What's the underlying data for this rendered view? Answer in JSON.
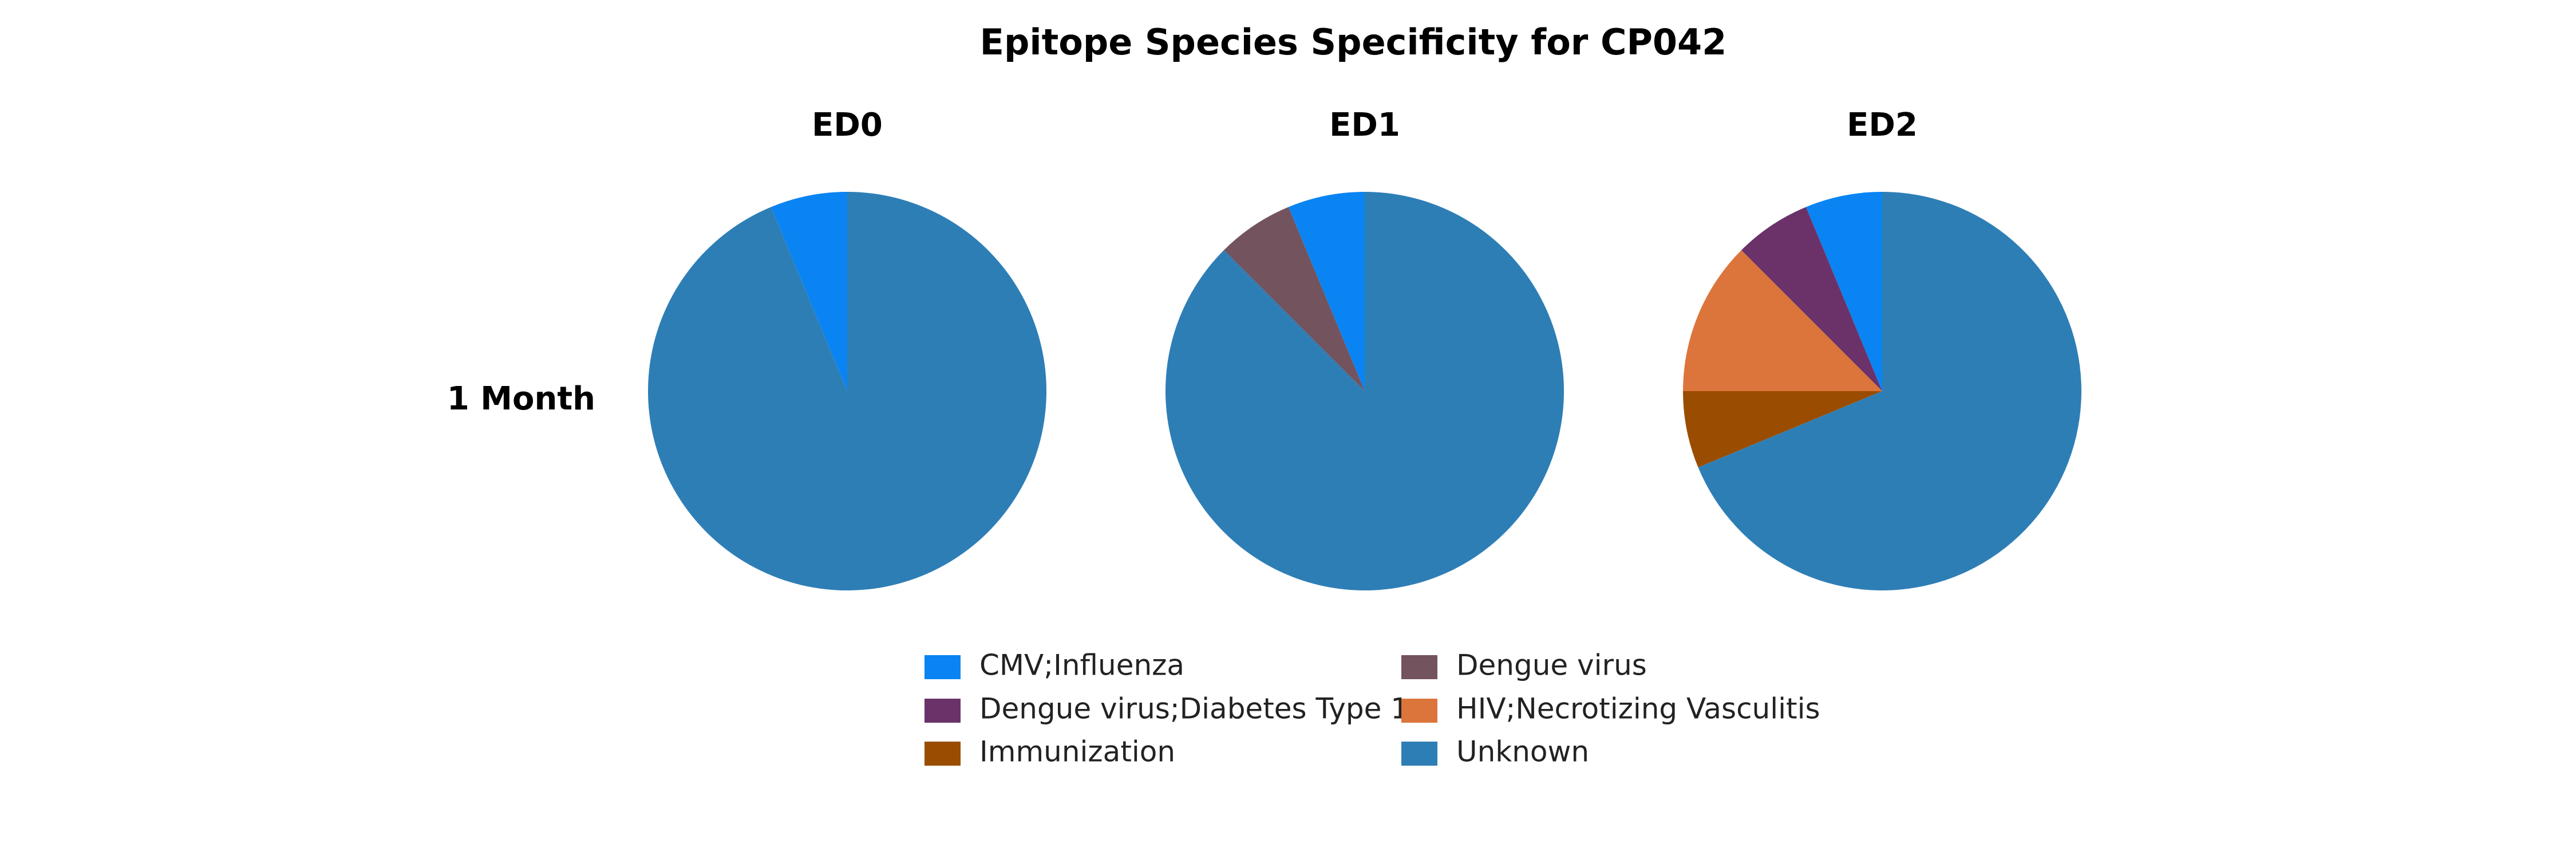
{
  "chart_data": {
    "type": "pie",
    "title": "Epitope Species Specificity for CP042",
    "row_labels": [
      "1 Month"
    ],
    "column_labels": [
      "ED0",
      "ED1",
      "ED2"
    ],
    "categories": [
      "CMV;Influenza",
      "Dengue virus",
      "Dengue virus;Diabetes Type 1",
      "HIV;Necrotizing Vasculitis",
      "Immunization",
      "Unknown"
    ],
    "colors": {
      "CMV;Influenza": "#0A84F2",
      "Dengue virus": "#73535E",
      "Dengue virus;Diabetes Type 1": "#6B326A",
      "HIV;Necrotizing Vasculitis": "#DC753B",
      "Immunization": "#9A4D00",
      "Unknown": "#2E7EB6"
    },
    "pies": [
      {
        "row": "1 Month",
        "column": "ED0",
        "slices": [
          {
            "label": "CMV;Influenza",
            "value": 1
          },
          {
            "label": "Unknown",
            "value": 15
          }
        ]
      },
      {
        "row": "1 Month",
        "column": "ED1",
        "slices": [
          {
            "label": "CMV;Influenza",
            "value": 1
          },
          {
            "label": "Dengue virus",
            "value": 1
          },
          {
            "label": "Unknown",
            "value": 14
          }
        ]
      },
      {
        "row": "1 Month",
        "column": "ED2",
        "slices": [
          {
            "label": "CMV;Influenza",
            "value": 1
          },
          {
            "label": "Dengue virus;Diabetes Type 1",
            "value": 1
          },
          {
            "label": "HIV;Necrotizing Vasculitis",
            "value": 2
          },
          {
            "label": "Immunization",
            "value": 1
          },
          {
            "label": "Unknown",
            "value": 11
          }
        ]
      }
    ],
    "legend": {
      "placement": "bottom",
      "entries": [
        "CMV;Influenza",
        "Dengue virus",
        "Dengue virus;Diabetes Type 1",
        "HIV;Necrotizing Vasculitis",
        "Immunization",
        "Unknown"
      ]
    }
  }
}
